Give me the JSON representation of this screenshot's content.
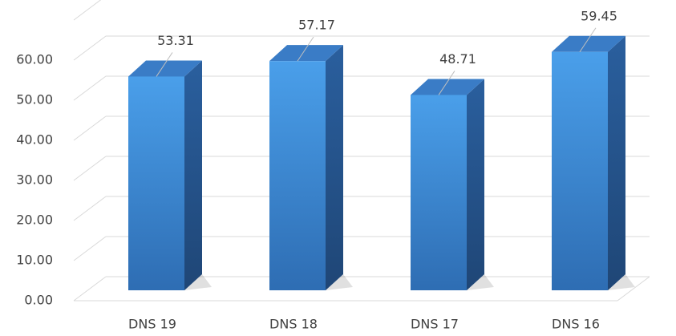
{
  "chart_data": {
    "type": "bar3d",
    "categories": [
      "DNS 19",
      "DNS 18",
      "DNS 17",
      "DNS 16"
    ],
    "values": [
      53.31,
      57.17,
      48.71,
      59.45
    ],
    "color": "#3d8ddc",
    "ylim": [
      0,
      70
    ],
    "yticks": [
      {
        "value": 0,
        "label": "0.00"
      },
      {
        "value": 10,
        "label": "10.00"
      },
      {
        "value": 20,
        "label": "20.00"
      },
      {
        "value": 30,
        "label": "30.00"
      },
      {
        "value": 40,
        "label": "40.00"
      },
      {
        "value": 50,
        "label": "50.00"
      },
      {
        "value": 60,
        "label": "60.00"
      }
    ],
    "grid": true
  }
}
